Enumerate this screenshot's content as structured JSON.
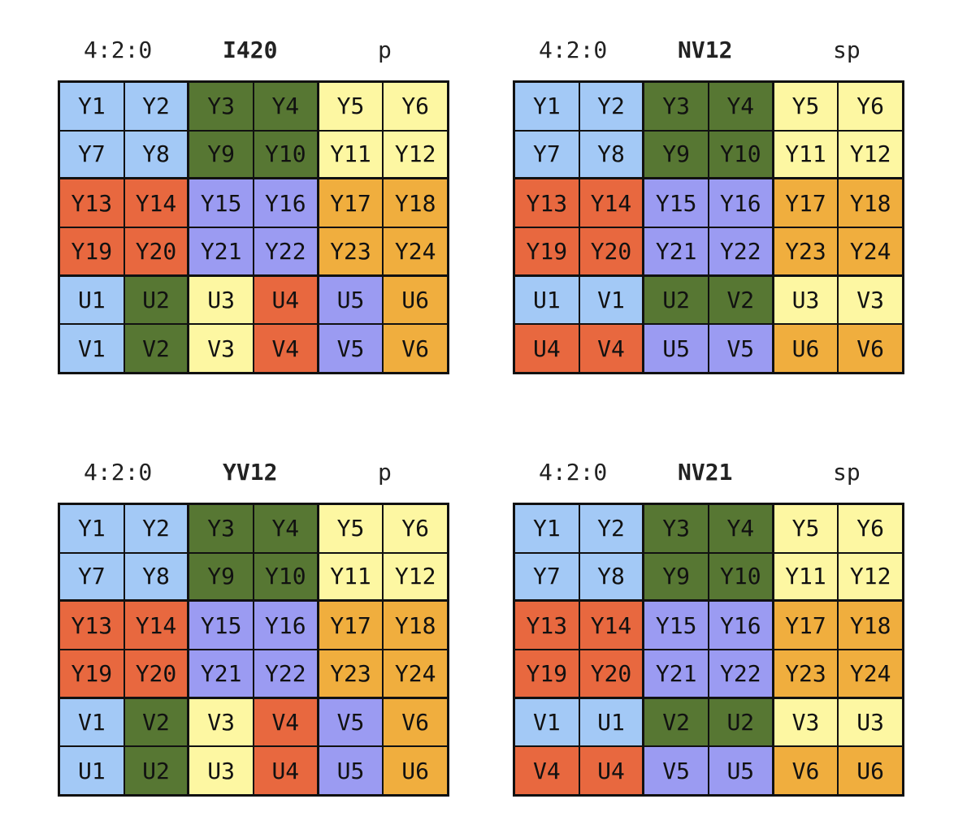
{
  "colors": {
    "blue": "#a3c9f6",
    "green": "#577733",
    "yellow": "#fdf7a2",
    "red": "#e8683f",
    "purple": "#9b9bf2",
    "orange": "#f0ae3e"
  },
  "diagrams": [
    {
      "subsampling": "4:2:0",
      "format": "I420",
      "type": "p",
      "rows": [
        [
          [
            "Y1",
            "blue"
          ],
          [
            "Y2",
            "blue"
          ],
          [
            "Y3",
            "green"
          ],
          [
            "Y4",
            "green"
          ],
          [
            "Y5",
            "yellow"
          ],
          [
            "Y6",
            "yellow"
          ]
        ],
        [
          [
            "Y7",
            "blue"
          ],
          [
            "Y8",
            "blue"
          ],
          [
            "Y9",
            "green"
          ],
          [
            "Y10",
            "green"
          ],
          [
            "Y11",
            "yellow"
          ],
          [
            "Y12",
            "yellow"
          ]
        ],
        [
          [
            "Y13",
            "red"
          ],
          [
            "Y14",
            "red"
          ],
          [
            "Y15",
            "purple"
          ],
          [
            "Y16",
            "purple"
          ],
          [
            "Y17",
            "orange"
          ],
          [
            "Y18",
            "orange"
          ]
        ],
        [
          [
            "Y19",
            "red"
          ],
          [
            "Y20",
            "red"
          ],
          [
            "Y21",
            "purple"
          ],
          [
            "Y22",
            "purple"
          ],
          [
            "Y23",
            "orange"
          ],
          [
            "Y24",
            "orange"
          ]
        ],
        [
          [
            "U1",
            "blue"
          ],
          [
            "U2",
            "green"
          ],
          [
            "U3",
            "yellow"
          ],
          [
            "U4",
            "red"
          ],
          [
            "U5",
            "purple"
          ],
          [
            "U6",
            "orange"
          ]
        ],
        [
          [
            "V1",
            "blue"
          ],
          [
            "V2",
            "green"
          ],
          [
            "V3",
            "yellow"
          ],
          [
            "V4",
            "red"
          ],
          [
            "V5",
            "purple"
          ],
          [
            "V6",
            "orange"
          ]
        ]
      ]
    },
    {
      "subsampling": "4:2:0",
      "format": "NV12",
      "type": "sp",
      "rows": [
        [
          [
            "Y1",
            "blue"
          ],
          [
            "Y2",
            "blue"
          ],
          [
            "Y3",
            "green"
          ],
          [
            "Y4",
            "green"
          ],
          [
            "Y5",
            "yellow"
          ],
          [
            "Y6",
            "yellow"
          ]
        ],
        [
          [
            "Y7",
            "blue"
          ],
          [
            "Y8",
            "blue"
          ],
          [
            "Y9",
            "green"
          ],
          [
            "Y10",
            "green"
          ],
          [
            "Y11",
            "yellow"
          ],
          [
            "Y12",
            "yellow"
          ]
        ],
        [
          [
            "Y13",
            "red"
          ],
          [
            "Y14",
            "red"
          ],
          [
            "Y15",
            "purple"
          ],
          [
            "Y16",
            "purple"
          ],
          [
            "Y17",
            "orange"
          ],
          [
            "Y18",
            "orange"
          ]
        ],
        [
          [
            "Y19",
            "red"
          ],
          [
            "Y20",
            "red"
          ],
          [
            "Y21",
            "purple"
          ],
          [
            "Y22",
            "purple"
          ],
          [
            "Y23",
            "orange"
          ],
          [
            "Y24",
            "orange"
          ]
        ],
        [
          [
            "U1",
            "blue"
          ],
          [
            "V1",
            "blue"
          ],
          [
            "U2",
            "green"
          ],
          [
            "V2",
            "green"
          ],
          [
            "U3",
            "yellow"
          ],
          [
            "V3",
            "yellow"
          ]
        ],
        [
          [
            "U4",
            "red"
          ],
          [
            "V4",
            "red"
          ],
          [
            "U5",
            "purple"
          ],
          [
            "V5",
            "purple"
          ],
          [
            "U6",
            "orange"
          ],
          [
            "V6",
            "orange"
          ]
        ]
      ]
    },
    {
      "subsampling": "4:2:0",
      "format": "YV12",
      "type": "p",
      "rows": [
        [
          [
            "Y1",
            "blue"
          ],
          [
            "Y2",
            "blue"
          ],
          [
            "Y3",
            "green"
          ],
          [
            "Y4",
            "green"
          ],
          [
            "Y5",
            "yellow"
          ],
          [
            "Y6",
            "yellow"
          ]
        ],
        [
          [
            "Y7",
            "blue"
          ],
          [
            "Y8",
            "blue"
          ],
          [
            "Y9",
            "green"
          ],
          [
            "Y10",
            "green"
          ],
          [
            "Y11",
            "yellow"
          ],
          [
            "Y12",
            "yellow"
          ]
        ],
        [
          [
            "Y13",
            "red"
          ],
          [
            "Y14",
            "red"
          ],
          [
            "Y15",
            "purple"
          ],
          [
            "Y16",
            "purple"
          ],
          [
            "Y17",
            "orange"
          ],
          [
            "Y18",
            "orange"
          ]
        ],
        [
          [
            "Y19",
            "red"
          ],
          [
            "Y20",
            "red"
          ],
          [
            "Y21",
            "purple"
          ],
          [
            "Y22",
            "purple"
          ],
          [
            "Y23",
            "orange"
          ],
          [
            "Y24",
            "orange"
          ]
        ],
        [
          [
            "V1",
            "blue"
          ],
          [
            "V2",
            "green"
          ],
          [
            "V3",
            "yellow"
          ],
          [
            "V4",
            "red"
          ],
          [
            "V5",
            "purple"
          ],
          [
            "V6",
            "orange"
          ]
        ],
        [
          [
            "U1",
            "blue"
          ],
          [
            "U2",
            "green"
          ],
          [
            "U3",
            "yellow"
          ],
          [
            "U4",
            "red"
          ],
          [
            "U5",
            "purple"
          ],
          [
            "U6",
            "orange"
          ]
        ]
      ]
    },
    {
      "subsampling": "4:2:0",
      "format": "NV21",
      "type": "sp",
      "rows": [
        [
          [
            "Y1",
            "blue"
          ],
          [
            "Y2",
            "blue"
          ],
          [
            "Y3",
            "green"
          ],
          [
            "Y4",
            "green"
          ],
          [
            "Y5",
            "yellow"
          ],
          [
            "Y6",
            "yellow"
          ]
        ],
        [
          [
            "Y7",
            "blue"
          ],
          [
            "Y8",
            "blue"
          ],
          [
            "Y9",
            "green"
          ],
          [
            "Y10",
            "green"
          ],
          [
            "Y11",
            "yellow"
          ],
          [
            "Y12",
            "yellow"
          ]
        ],
        [
          [
            "Y13",
            "red"
          ],
          [
            "Y14",
            "red"
          ],
          [
            "Y15",
            "purple"
          ],
          [
            "Y16",
            "purple"
          ],
          [
            "Y17",
            "orange"
          ],
          [
            "Y18",
            "orange"
          ]
        ],
        [
          [
            "Y19",
            "red"
          ],
          [
            "Y20",
            "red"
          ],
          [
            "Y21",
            "purple"
          ],
          [
            "Y22",
            "purple"
          ],
          [
            "Y23",
            "orange"
          ],
          [
            "Y24",
            "orange"
          ]
        ],
        [
          [
            "V1",
            "blue"
          ],
          [
            "U1",
            "blue"
          ],
          [
            "V2",
            "green"
          ],
          [
            "U2",
            "green"
          ],
          [
            "V3",
            "yellow"
          ],
          [
            "U3",
            "yellow"
          ]
        ],
        [
          [
            "V4",
            "red"
          ],
          [
            "U4",
            "red"
          ],
          [
            "V5",
            "purple"
          ],
          [
            "U5",
            "purple"
          ],
          [
            "V6",
            "orange"
          ],
          [
            "U6",
            "orange"
          ]
        ]
      ]
    }
  ]
}
